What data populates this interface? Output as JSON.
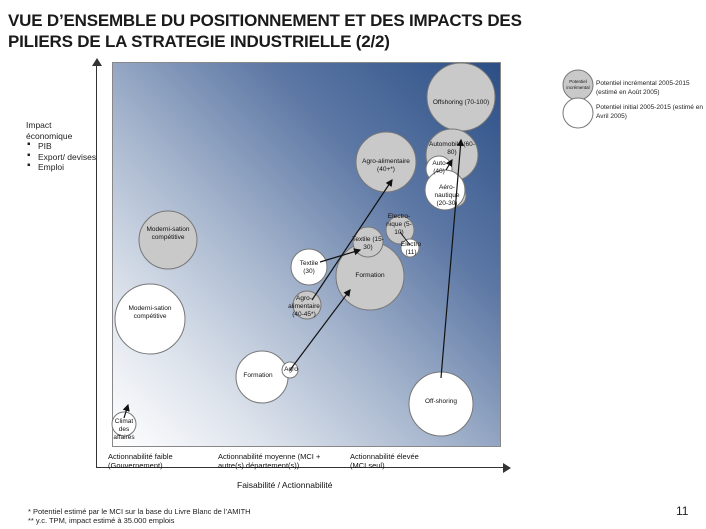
{
  "title": {
    "line1": "VUE D’ENSEMBLE DU POSITIONNEMENT ET DES IMPACTS DES",
    "line2": "PILIERS DE LA STRATEGIE INDUSTRIELLE (2/2)"
  },
  "y_axis": {
    "title_line1": "Impact",
    "title_line2": "économique",
    "items": [
      "PIB",
      "Export/ devises",
      "Emploi"
    ]
  },
  "x_axis": {
    "title": "Faisabilité / Actionnabilité",
    "low": "Actionnabilité faible (Gouvernement)",
    "mid": "Actionnabilité moyenne (MCI + autre(s) département(s))",
    "high": "Actionnabilité élevée (MCI seul)"
  },
  "legend": {
    "gray_bubble_label": "Potentiel incrémental",
    "gray_text": "Potentiel incrémental 2005-2015 (estimé en Août 2005)",
    "white_text": "Potentiel initial 2005-2015 (estimé en Avril 2005)"
  },
  "bubbles": {
    "offshoring": "Offshoring (70-100)",
    "automobile": "Automobile (60-80)",
    "agro_big": "Agro-alimentaire (40+*)",
    "auto_small": "Auto (40)",
    "aero": "Aéro-nautique (20-30)",
    "electro_big": "Electro-nique (5-10)",
    "electro_small": "Electro (11)",
    "textile_big": "Textile (15-30)",
    "textile_small": "Textile (30)",
    "modern_big": "Moderni-sation compétitive",
    "formation_big": "Formation",
    "agro_small": "Agro-alimentaire (40-45*)",
    "modern_small": "Moderni-sation compétitive",
    "formation_small": "Formation",
    "agro_tiny": "Agro",
    "offshoring_small": "Off-shoring",
    "climat": "Climat des affaires"
  },
  "footnotes": {
    "note1": "* Potentiel estimé par le MCI sur la base du Livre Blanc de l’AMITH",
    "note2": "** y.c. TPM, impact estimé à 35.000 emplois"
  },
  "page_number": "11",
  "colors": {
    "gradient_dark": "#2b4f86",
    "bubble_gray": "#c8c8c8",
    "bubble_white": "#ffffff"
  }
}
